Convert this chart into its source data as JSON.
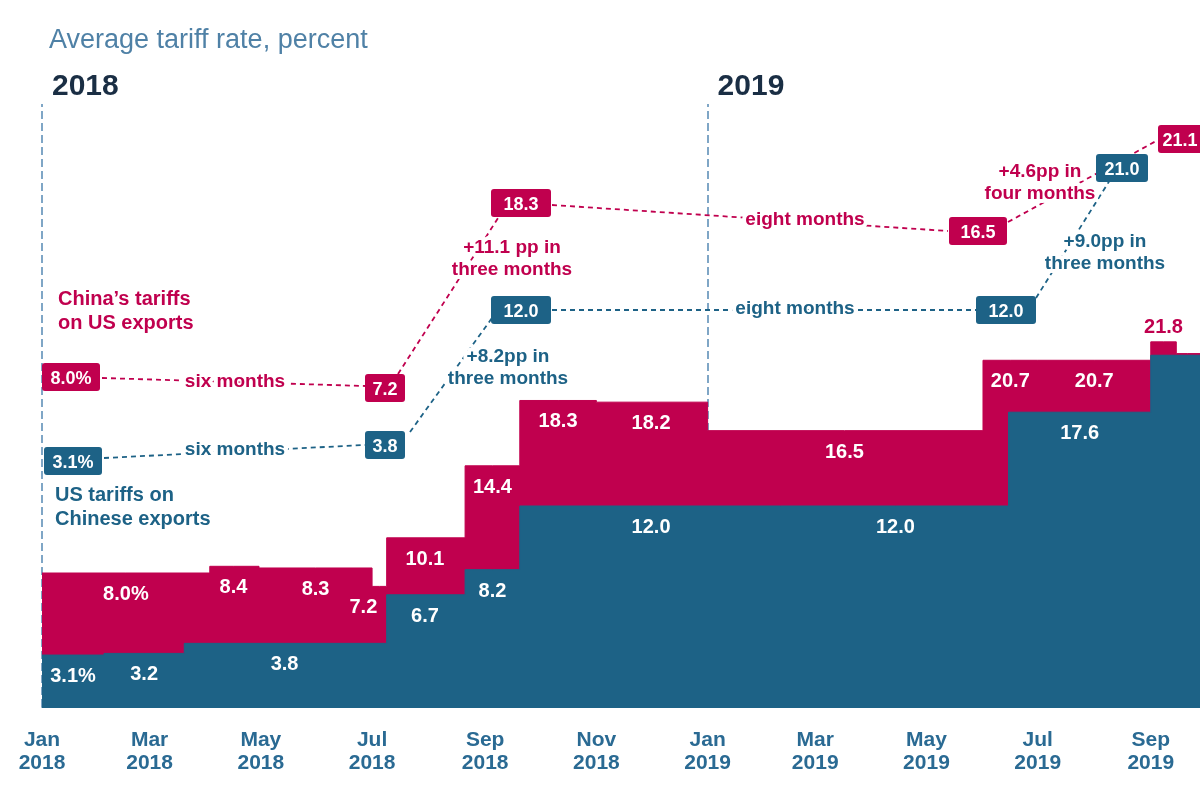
{
  "chart_data": {
    "type": "area",
    "title": "Average tariff rate, percent",
    "series": [
      {
        "name": "China’s tariffs\non US exports",
        "color": "#c0004e",
        "x": [
          "2018-01-01",
          "2018-02-16",
          "2018-04-03",
          "2018-04-03",
          "2018-04-16",
          "2018-04-30",
          "2018-04-30",
          "2018-05-31",
          "2018-07-01",
          "2018-07-01",
          "2018-07-05",
          "2018-07-09",
          "2018-07-09",
          "2018-07-30",
          "2018-08-21",
          "2018-08-21",
          "2018-09-05",
          "2018-09-20",
          "2018-09-20",
          "2018-10-11",
          "2018-11-01",
          "2018-11-01",
          "2018-12-01",
          "2019-01-01",
          "2019-01-01",
          "2019-03-17",
          "2019-06-01",
          "2019-06-01",
          "2019-06-16",
          "2019-07-01",
          "2019-07-01",
          "2019-08-01",
          "2019-09-01",
          "2019-09-01",
          "2019-09-08",
          "2019-09-15",
          "2019-09-15",
          "2019-09-21",
          "2019-09-28"
        ],
        "values": [
          8.0,
          8.0,
          8.0,
          8.4,
          8.4,
          8.4,
          8.3,
          8.3,
          8.3,
          7.2,
          7.2,
          7.2,
          10.1,
          10.1,
          10.1,
          14.4,
          14.4,
          14.4,
          18.3,
          18.3,
          18.3,
          18.2,
          18.2,
          18.2,
          16.5,
          16.5,
          16.5,
          20.7,
          20.7,
          20.7,
          20.7,
          20.7,
          20.7,
          21.8,
          21.8,
          21.8,
          21.1,
          21.1,
          21.1
        ],
        "value_labels": [
          null,
          "8.0%",
          null,
          null,
          "8.4",
          null,
          null,
          "8.3",
          null,
          null,
          "7.2",
          null,
          null,
          "10.1",
          null,
          null,
          "14.4",
          null,
          null,
          "18.3",
          null,
          null,
          "18.2",
          null,
          null,
          "16.5",
          null,
          null,
          "20.7",
          null,
          null,
          "20.7",
          null,
          null,
          "21.8",
          null,
          null,
          null,
          null
        ]
      },
      {
        "name": "US tariffs on\nChinese exports",
        "color": "#1d6286",
        "x": [
          "2018-01-01",
          "2018-01-18",
          "2018-02-04",
          "2018-02-04",
          "2018-02-26",
          "2018-03-20",
          "2018-03-20",
          "2018-05-14",
          "2018-07-09",
          "2018-07-09",
          "2018-07-30",
          "2018-08-21",
          "2018-08-21",
          "2018-09-05",
          "2018-09-20",
          "2018-09-20",
          "2018-12-01",
          "2019-02-10",
          "2019-02-10",
          "2019-04-14",
          "2019-06-15",
          "2019-06-15",
          "2019-07-24",
          "2019-09-01",
          "2019-09-01",
          "2019-09-14",
          "2019-09-28"
        ],
        "values": [
          3.1,
          3.1,
          3.1,
          3.2,
          3.2,
          3.2,
          3.8,
          3.8,
          3.8,
          6.7,
          6.7,
          6.7,
          8.2,
          8.2,
          8.2,
          12.0,
          12.0,
          12.0,
          12.0,
          12.0,
          12.0,
          17.6,
          17.6,
          17.6,
          21.0,
          21.0,
          21.0
        ],
        "value_labels": [
          null,
          "3.1%",
          null,
          null,
          "3.2",
          null,
          null,
          "3.8",
          null,
          null,
          "6.7",
          null,
          null,
          "8.2",
          null,
          null,
          "12.0",
          null,
          null,
          "12.0",
          null,
          null,
          "17.6",
          null,
          null,
          null,
          null
        ]
      }
    ],
    "xlim": [
      "2018-01-01",
      "2019-09-28"
    ],
    "xticks": [
      {
        "value": "2018-01-01",
        "label": "Jan\n2018"
      },
      {
        "value": "2018-03-01",
        "label": "Mar\n2018"
      },
      {
        "value": "2018-05-01",
        "label": "May\n2018"
      },
      {
        "value": "2018-07-01",
        "label": "Jul\n2018"
      },
      {
        "value": "2018-09-01",
        "label": "Sep\n2018"
      },
      {
        "value": "2018-11-01",
        "label": "Nov\n2018"
      },
      {
        "value": "2019-01-01",
        "label": "Jan\n2019"
      },
      {
        "value": "2019-03-01",
        "label": "Mar\n2019"
      },
      {
        "value": "2019-05-01",
        "label": "May\n2019"
      },
      {
        "value": "2019-07-01",
        "label": "Jul\n2019"
      },
      {
        "value": "2019-09-01",
        "label": "Sep\n2019"
      }
    ],
    "ylim": [
      0,
      36
    ],
    "tick_labels": "x",
    "grid": false,
    "marker": "none",
    "ref_lines": [
      {
        "axis": "x",
        "value": "2018-01-01",
        "label": "2018",
        "color": "#7fa6c6",
        "line_style": "dashed"
      },
      {
        "axis": "x",
        "value": "2019-01-01",
        "label": "2019",
        "color": "#7fa6c6",
        "line_style": "dashed"
      }
    ],
    "annotations": [
      "8.0%",
      "six months",
      "7.2",
      "+11.1 pp in\nthree months",
      "18.3",
      "eight months",
      "16.5",
      "+4.6pp in\nfour months",
      "21.1",
      "3.1%",
      "six months",
      "3.8",
      "+8.2pp in\nthree months",
      "12.0",
      "eight months",
      "12.0",
      "+9.0pp in\nthree months",
      "21.0"
    ]
  }
}
